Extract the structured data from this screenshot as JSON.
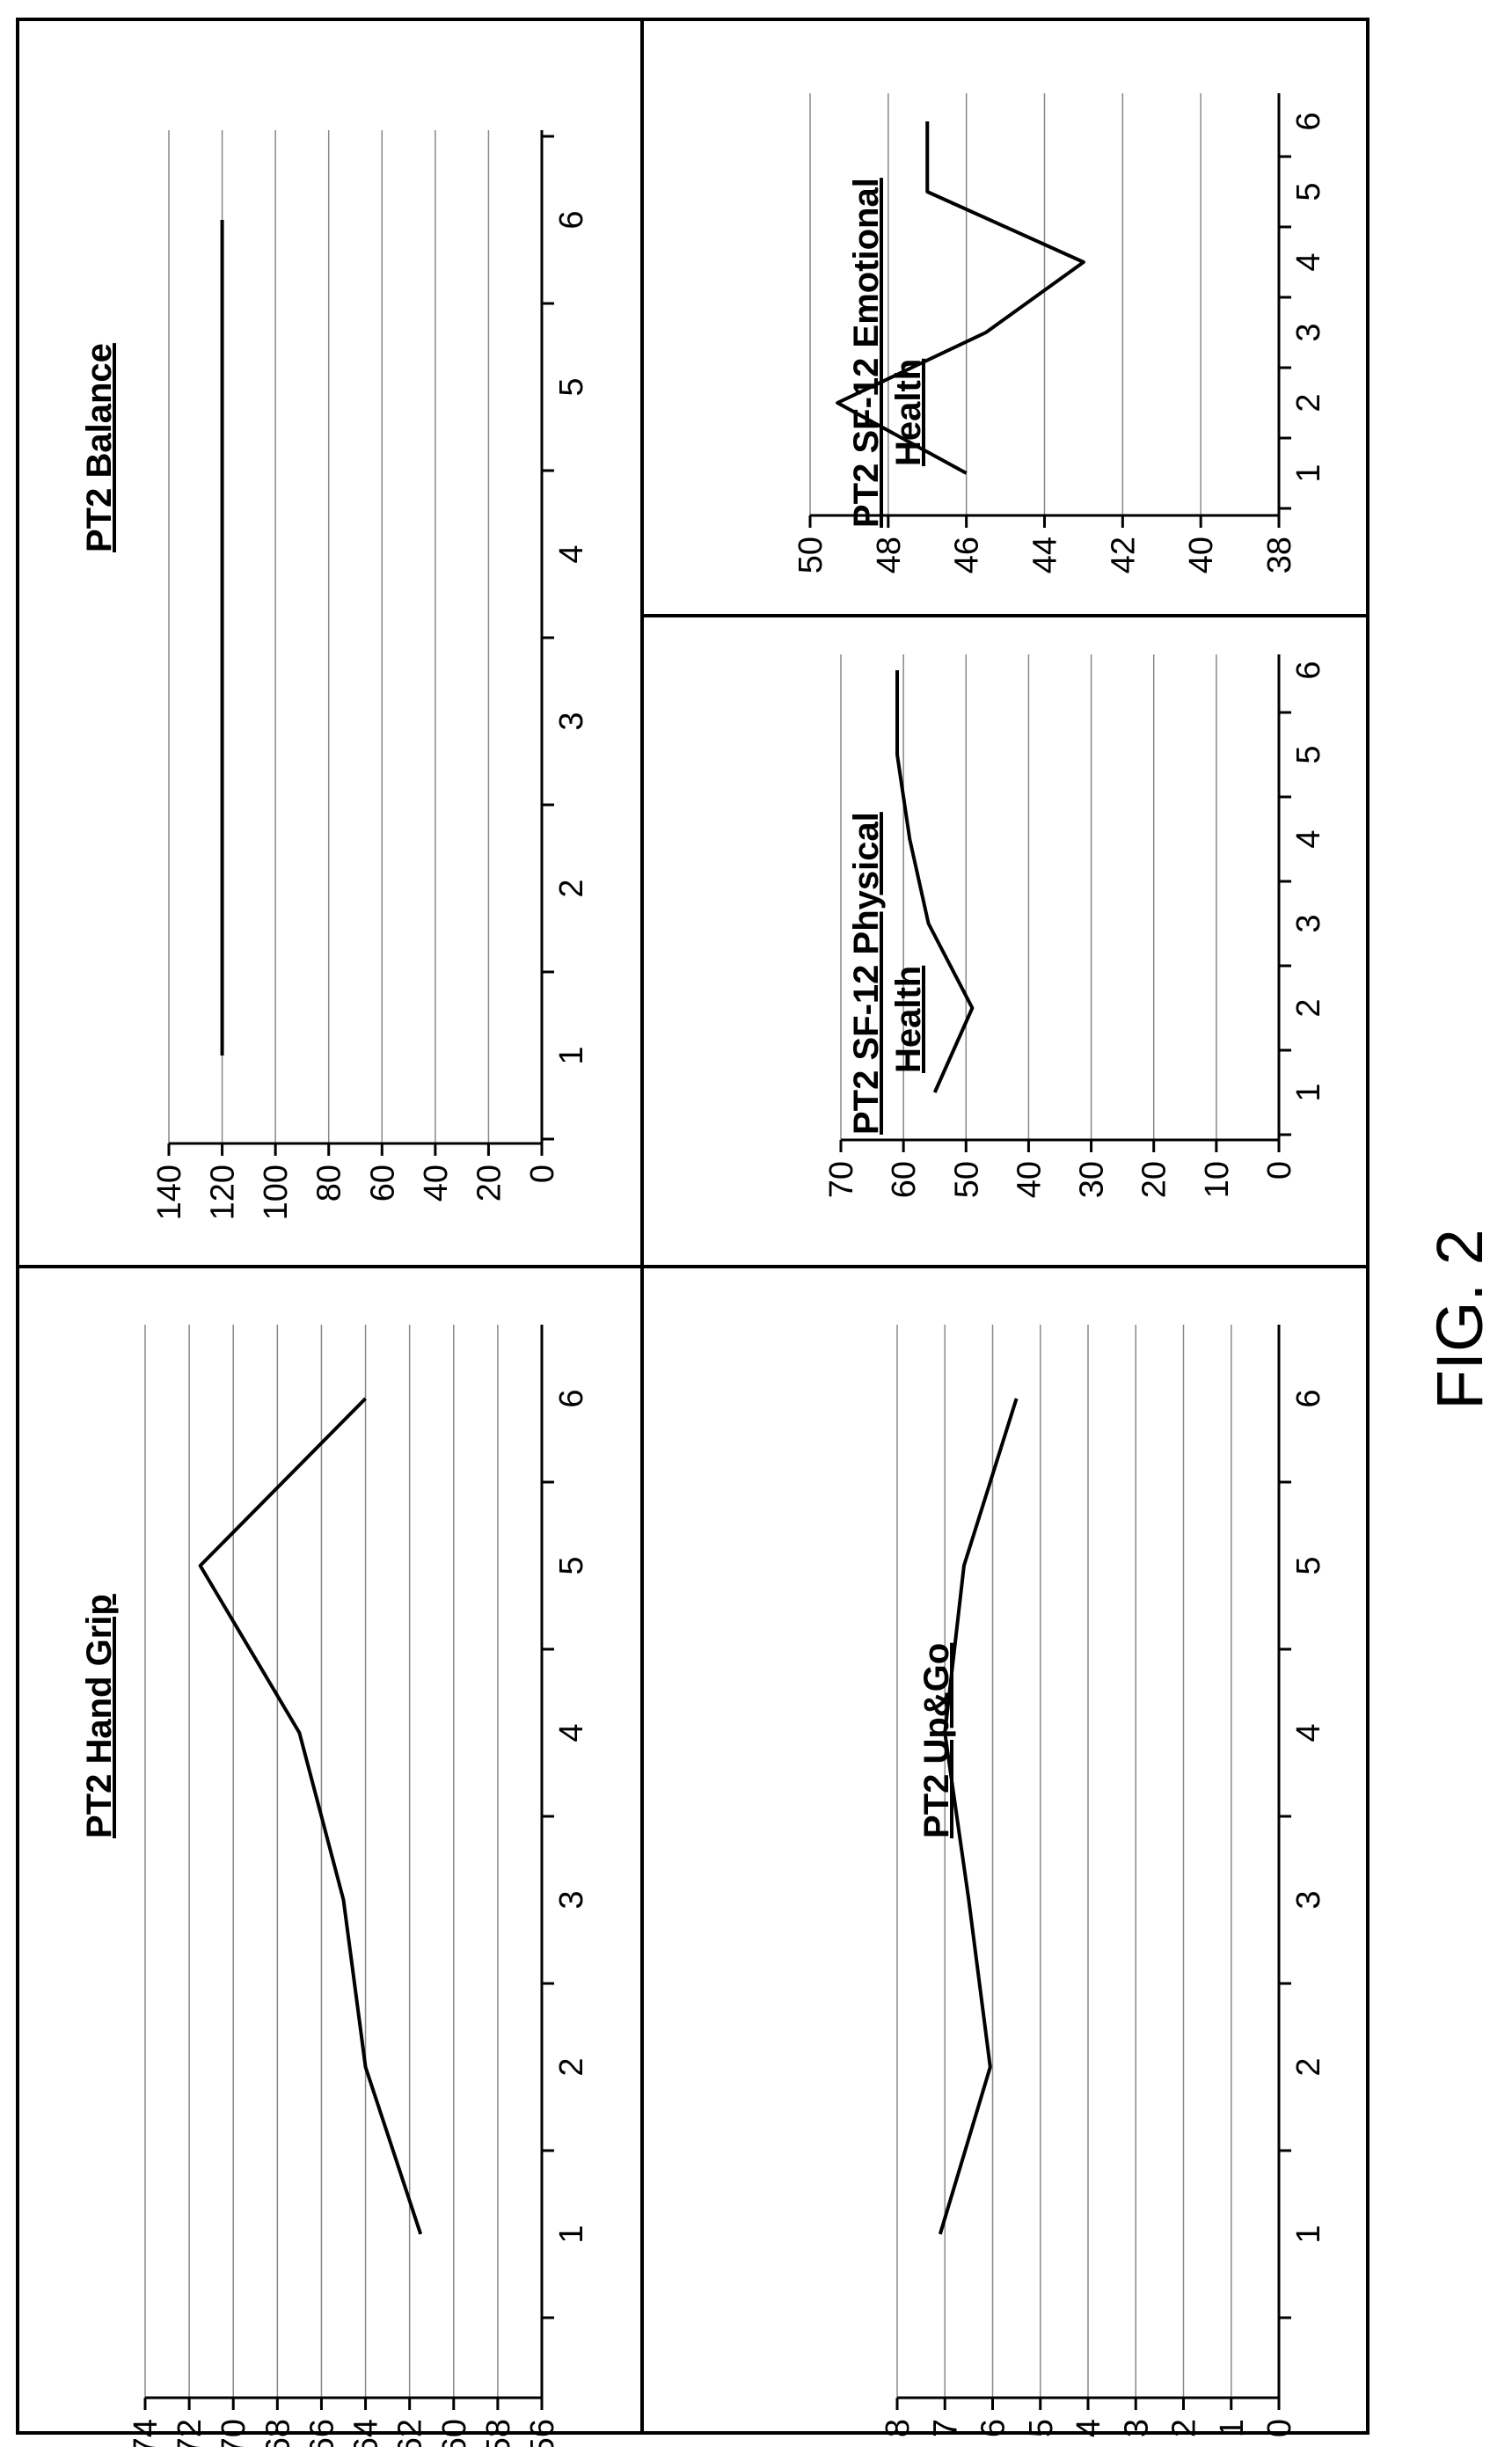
{
  "figure": {
    "caption": "FIG. 2"
  },
  "chart_data": [
    {
      "type": "line",
      "title": "PT2 Hand Grip",
      "title_lines": [
        "PT2 Hand Grip"
      ],
      "x": [
        1,
        2,
        3,
        4,
        5,
        6
      ],
      "x_ticks": [
        "1",
        "2",
        "3",
        "4",
        "5",
        "6"
      ],
      "y_ticks": [
        "56",
        "58",
        "60",
        "62",
        "64",
        "66",
        "68",
        "70",
        "72",
        "74"
      ],
      "ylim": [
        56,
        74
      ],
      "series": [
        {
          "values": [
            61.5,
            64.0,
            65.0,
            67.0,
            71.5,
            64.0
          ]
        }
      ],
      "grid": true,
      "line_color": "#000000",
      "grid_color": "#888888"
    },
    {
      "type": "line",
      "title": "PT2 Balance",
      "title_lines": [
        "PT2 Balance"
      ],
      "x": [
        1,
        2,
        3,
        4,
        5,
        6
      ],
      "x_ticks": [
        "1",
        "2",
        "3",
        "4",
        "5",
        "6"
      ],
      "y_ticks": [
        "0",
        "20",
        "40",
        "60",
        "80",
        "100",
        "120",
        "140"
      ],
      "ylim": [
        0,
        140
      ],
      "series": [
        {
          "values": [
            120,
            120,
            120,
            120,
            120,
            120
          ]
        }
      ],
      "grid": true,
      "line_color": "#000000",
      "grid_color": "#888888"
    },
    {
      "type": "line",
      "title": "PT2 Up&Go",
      "title_lines": [
        "PT2 Up&Go"
      ],
      "x": [
        1,
        2,
        3,
        4,
        5,
        6
      ],
      "x_ticks": [
        "1",
        "2",
        "3",
        "4",
        "5",
        "6"
      ],
      "y_ticks": [
        "0",
        "1",
        "2",
        "3",
        "4",
        "5",
        "6",
        "7",
        "8"
      ],
      "ylim": [
        0,
        8
      ],
      "series": [
        {
          "values": [
            7.1,
            6.05,
            6.5,
            7.0,
            6.6,
            5.5
          ]
        }
      ],
      "grid": true,
      "line_color": "#000000",
      "grid_color": "#888888"
    },
    {
      "type": "line",
      "title": "PT2 SF-12 Physical Health",
      "title_lines": [
        "PT2  SF-12 Physical",
        "Health"
      ],
      "x": [
        1,
        2,
        3,
        4,
        5,
        6
      ],
      "x_ticks": [
        "1",
        "2",
        "3",
        "4",
        "5",
        "6"
      ],
      "y_ticks": [
        "0",
        "10",
        "20",
        "30",
        "40",
        "50",
        "60",
        "70"
      ],
      "ylim": [
        0,
        70
      ],
      "series": [
        {
          "values": [
            55,
            49,
            56,
            59,
            61,
            61
          ]
        }
      ],
      "grid": true,
      "line_color": "#000000",
      "grid_color": "#888888"
    },
    {
      "type": "line",
      "title": "PT2 SF-12 Emotional Health",
      "title_lines": [
        "PT2 SF-12 Emotional",
        "Health"
      ],
      "x": [
        1,
        2,
        3,
        4,
        5,
        6
      ],
      "x_ticks": [
        "1",
        "2",
        "3",
        "4",
        "5",
        "6"
      ],
      "y_ticks": [
        "38",
        "40",
        "42",
        "44",
        "46",
        "48",
        "50"
      ],
      "ylim": [
        38,
        50
      ],
      "series": [
        {
          "values": [
            46,
            49.3,
            45.5,
            43,
            47,
            47
          ]
        }
      ],
      "grid": true,
      "line_color": "#000000",
      "grid_color": "#888888"
    }
  ]
}
